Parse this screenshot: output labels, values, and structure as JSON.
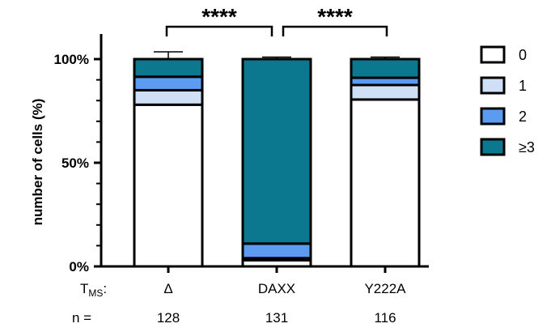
{
  "chart_data": {
    "type": "bar",
    "stacked": true,
    "ylabel": "number of cells (%)",
    "ylim": [
      0,
      100
    ],
    "yticks": [
      "0%",
      "50%",
      "100%"
    ],
    "categories": [
      "Δ",
      "DAXX",
      "Y222A"
    ],
    "row_labels": {
      "t_prefix": "T",
      "t_sub": "MS",
      "t_suffix": ":",
      "n_label": "n ="
    },
    "n_values": [
      "128",
      "131",
      "116"
    ],
    "series": [
      {
        "name": "0",
        "color": "#ffffff",
        "values": [
          78,
          3,
          80.5
        ],
        "errors": [
          2.5,
          1.5,
          1.5
        ]
      },
      {
        "name": "1",
        "color": "#cfe0f6",
        "values": [
          7,
          1,
          7
        ],
        "errors": [
          1.5,
          0.5,
          1.5
        ]
      },
      {
        "name": "2",
        "color": "#5b9cf0",
        "values": [
          6.5,
          7,
          3.5
        ],
        "errors": [
          0.5,
          2.5,
          1
        ]
      },
      {
        "name": "≥3",
        "color": "#0b7890",
        "values": [
          8.5,
          89,
          9
        ],
        "errors": [
          3.5,
          1,
          1
        ]
      }
    ],
    "significance": [
      {
        "from": 0,
        "to": 1,
        "label": "****"
      },
      {
        "from": 1,
        "to": 2,
        "label": "****"
      }
    ],
    "legend_position": "right"
  }
}
